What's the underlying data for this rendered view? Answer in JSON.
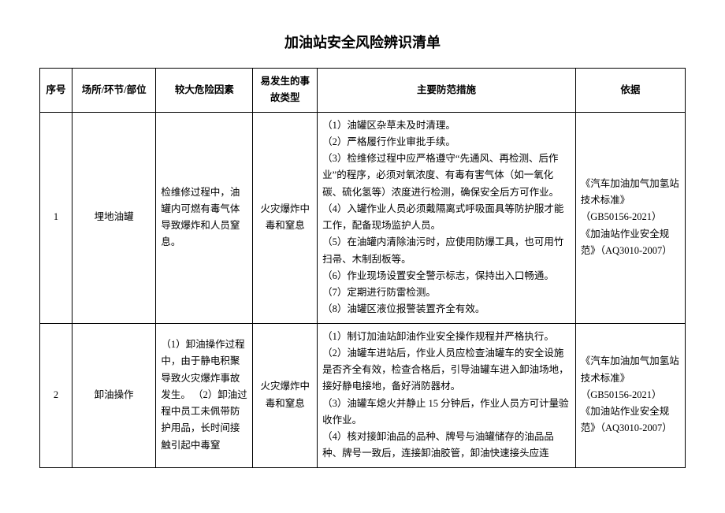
{
  "title": "加油站安全风险辨识清单",
  "columns": [
    "序号",
    "场所/环节/部位",
    "较大危险因素",
    "易发生的事故类型",
    "主要防范措施",
    "依据"
  ],
  "rows": [
    {
      "idx": "1",
      "location": "埋地油罐",
      "risk": "检维修过程中，油罐内可燃有毒气体导致爆炸和人员窒息。",
      "accident": "火灾爆炸中毒和窒息",
      "measures": [
        "（1）油罐区杂草未及时清理。",
        "（2）严格履行作业审批手续。",
        "（3）检维修过程中应严格遵守“先通风、再检测、后作业”的程序，必须对氧浓度、有毒有害气体（如一氧化碳、硫化氢等）浓度进行检测，确保安全后方可作业。",
        "（4）入罐作业人员必须戴隔离式呼吸面具等防护服才能工作，配备现场监护人员。",
        "（5）在油罐内清除油污时，应使用防爆工具，也可用竹扫帚、木制刮板等。",
        "（6）作业现场设置安全警示标志，保持出入口畅通。",
        "（7）定期进行防雷检测。",
        "（8）油罐区液位报警装置齐全有效。"
      ],
      "basis": [
        "《汽车加油加气加氢站技术标准》",
        "（GB50156-2021）",
        "《加油站作业安全规范》（AQ3010-2007）"
      ]
    },
    {
      "idx": "2",
      "location": "卸油操作",
      "risk": "（1）卸油操作过程中，由于静电积聚导致火灾爆炸事故发生。\n（2）卸油过程中员工未佩带防护用品，长时间接触引起中毒窒",
      "accident": "火灾爆炸中毒和窒息",
      "measures": [
        "（1）制订加油站卸油作业安全操作规程并严格执行。",
        "（2）油罐车进站后，作业人员应检查油罐车的安全设施是否齐全有效，检查合格后，引导油罐车进入卸油场地，接好静电接地，备好消防器材。",
        "（3）油罐车熄火并静止 15 分钟后，作业人员方可计量验收作业。",
        "（4）核对接卸油品的品种、牌号与油罐储存的油品品种、牌号一致后，连接卸油胶管，卸油快速接头应连"
      ],
      "basis": [
        "《汽车加油加气加氢站技术标准》",
        "（GB50156-2021）",
        "《加油站作业安全规范》（AQ3010-2007）"
      ]
    }
  ]
}
